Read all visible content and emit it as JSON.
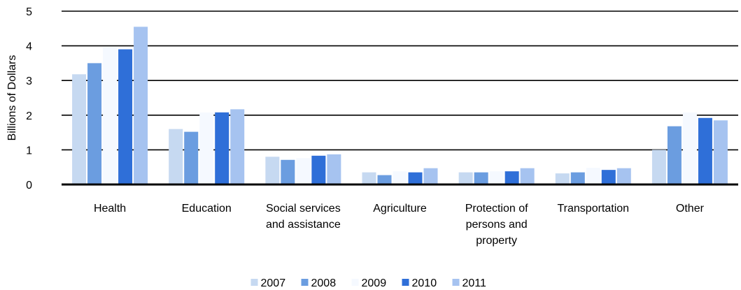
{
  "chart_data": {
    "type": "bar",
    "title": "",
    "xlabel": "",
    "ylabel": "Billions of Dollars",
    "ylim": [
      0,
      5
    ],
    "yticks": [
      "0",
      "1",
      "2",
      "3",
      "4",
      "5"
    ],
    "grid": true,
    "legend_position": "bottom",
    "categories": [
      [
        "Health"
      ],
      [
        "Education"
      ],
      [
        "Social services",
        "and assistance"
      ],
      [
        "Agriculture"
      ],
      [
        "Protection of",
        "persons and",
        "property"
      ],
      [
        "Transportation"
      ],
      [
        "Other"
      ]
    ],
    "series": [
      {
        "name": "2007",
        "color": "#c6d9f1",
        "values": [
          3.18,
          1.6,
          0.8,
          0.35,
          0.35,
          0.32,
          1.0
        ]
      },
      {
        "name": "2008",
        "color": "#6b9de0",
        "values": [
          3.5,
          1.52,
          0.71,
          0.27,
          0.35,
          0.35,
          1.68
        ]
      },
      {
        "name": "2009",
        "color": "#f5f9ff",
        "values": [
          3.97,
          2.08,
          0.76,
          0.38,
          0.38,
          0.48,
          2.08
        ]
      },
      {
        "name": "2010",
        "color": "#2f6fd8",
        "values": [
          3.9,
          2.08,
          0.83,
          0.35,
          0.38,
          0.42,
          1.92
        ]
      },
      {
        "name": "2011",
        "color": "#a6c3f0",
        "values": [
          4.55,
          2.17,
          0.87,
          0.47,
          0.47,
          0.47,
          1.85
        ]
      }
    ]
  }
}
